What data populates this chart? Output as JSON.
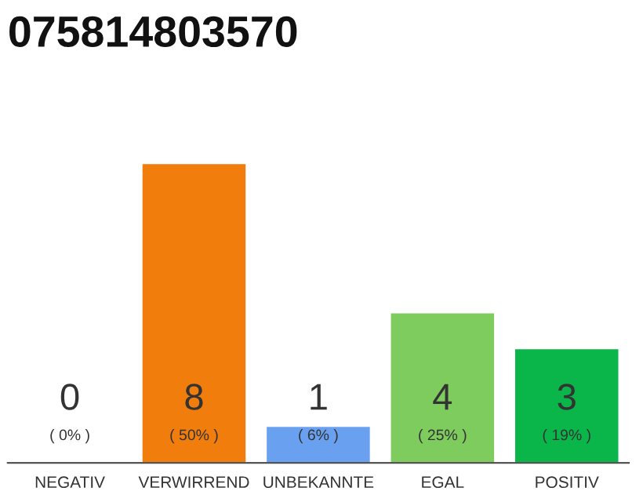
{
  "chart_data": {
    "type": "bar",
    "title": "075814803570",
    "categories": [
      "NEGATIV",
      "VERWIRREND",
      "UNBEKANNTE",
      "EGAL",
      "POSITIV"
    ],
    "values": [
      0,
      50,
      6,
      25,
      19
    ],
    "colors": [
      "#9e9e9e",
      "#f07d0c",
      "#6aa0f0",
      "#7ecb5e",
      "#0ab64a"
    ],
    "value_labels": [
      "( 0% )",
      "( 50% )",
      "( 6% )",
      "( 25% )",
      "( 19% )"
    ],
    "annotations": [
      "0",
      "8",
      "1",
      "4",
      "3"
    ],
    "grid": false,
    "legend": false
  }
}
